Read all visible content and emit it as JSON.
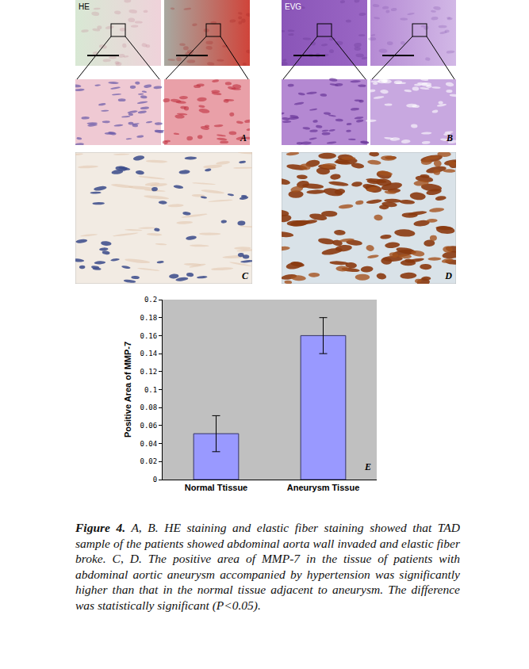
{
  "panels": [
    {
      "label": "A",
      "stain": "HE"
    },
    {
      "label": "B",
      "stain": "EVG"
    },
    {
      "label": "C"
    },
    {
      "label": "D"
    }
  ],
  "chart_data": {
    "type": "bar",
    "categories": [
      "Normal Ttissue",
      "Aneurysm Tissue"
    ],
    "values": [
      0.051,
      0.16
    ],
    "error": [
      0.02,
      0.02
    ],
    "color": "#9999ff",
    "ylabel": "Positive Area of MMP-7",
    "ylim": [
      0,
      0.2
    ],
    "yticks": [
      0,
      0.02,
      0.04,
      0.06,
      0.08,
      0.1,
      0.12,
      0.14,
      0.16,
      0.18,
      0.2
    ],
    "grid": false,
    "annotations": [
      {
        "text": "E"
      }
    ]
  },
  "caption": {
    "label": "Figure 4.",
    "text": "A, B. HE staining and elastic fiber staining showed that TAD sample of the patients showed abdominal aorta wall invaded and elastic fiber broke. C, D. The positive area of MMP-7 in the tissue of patients with abdominal aortic aneurysm accompanied by hypertension was significantly higher than that in the normal tissue adjacent to aneurysm. The difference was statistically significant (P<0.05)."
  }
}
